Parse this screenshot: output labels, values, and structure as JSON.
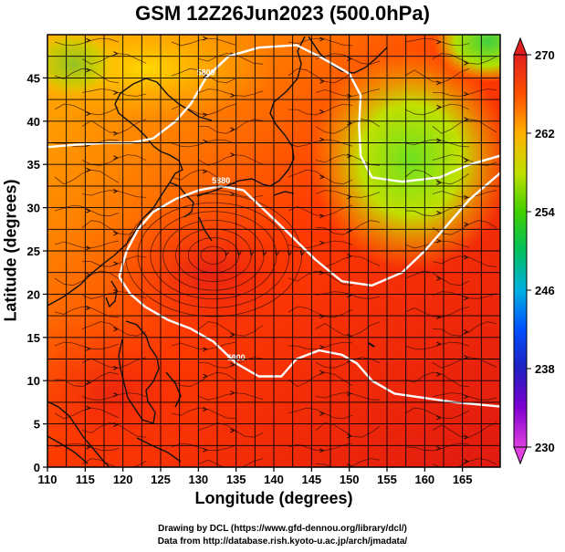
{
  "title": "GSM 12Z26Jun2023 (500.0hPa)",
  "xlabel": "Longitude (degrees)",
  "ylabel": "Latitude (degrees)",
  "credits": [
    "Drawing by DCL (https://www.gfd-dennou.org/library/dcl/)",
    "Data from http://database.rish.kyoto-u.ac.jp/arch/jmadata/"
  ],
  "chart_data": {
    "type": "heatmap",
    "xlim": [
      110,
      170
    ],
    "ylim": [
      0,
      50
    ],
    "xticks": [
      110,
      115,
      120,
      125,
      130,
      135,
      140,
      145,
      150,
      155,
      160,
      165
    ],
    "yticks": [
      0,
      5,
      10,
      15,
      20,
      25,
      30,
      35,
      40,
      45
    ],
    "grid": true,
    "colorbar": {
      "ticks": [
        230,
        238,
        246,
        254,
        262,
        270
      ],
      "range": [
        230,
        270
      ],
      "colors": [
        "#e040e0",
        "#4000c0",
        "#0060ff",
        "#00c8e0",
        "#00c040",
        "#80e000",
        "#f0e000",
        "#ff9900",
        "#ff4400",
        "#e02020"
      ]
    },
    "contours": [
      {
        "label": "5800",
        "points": [
          [
            110,
            37
          ],
          [
            114,
            37.3
          ],
          [
            118,
            37.5
          ],
          [
            121,
            37.5
          ],
          [
            124,
            38
          ],
          [
            127,
            40
          ],
          [
            129,
            42
          ],
          [
            131,
            45
          ],
          [
            134,
            47.5
          ],
          [
            138,
            48.5
          ],
          [
            143,
            48.8
          ],
          [
            146,
            47.5
          ],
          [
            150,
            45.5
          ],
          [
            151.5,
            43
          ],
          [
            151.3,
            39.5
          ],
          [
            151.5,
            36
          ],
          [
            153,
            33.5
          ],
          [
            157,
            33
          ],
          [
            162,
            33.5
          ],
          [
            166,
            35
          ],
          [
            170,
            36
          ]
        ]
      },
      {
        "label": "5880",
        "points": [
          [
            119.5,
            22
          ],
          [
            120.5,
            25
          ],
          [
            122,
            27.5
          ],
          [
            124,
            29.5
          ],
          [
            127,
            31
          ],
          [
            130,
            32
          ],
          [
            133,
            32.5
          ],
          [
            136,
            32
          ],
          [
            139,
            29.5
          ],
          [
            142,
            27
          ],
          [
            145.5,
            24
          ],
          [
            149,
            21.5
          ],
          [
            153,
            21
          ],
          [
            157,
            22.5
          ],
          [
            160,
            25
          ],
          [
            163,
            28
          ],
          [
            166,
            31
          ],
          [
            170,
            34
          ]
        ]
      },
      {
        "label": "5900",
        "points": [
          [
            119.5,
            22
          ],
          [
            121,
            20
          ],
          [
            123,
            18.5
          ],
          [
            126,
            17
          ],
          [
            129,
            16
          ],
          [
            132,
            14.5
          ],
          [
            135,
            12
          ],
          [
            138,
            10.5
          ],
          [
            141,
            10.5
          ],
          [
            143,
            12.5
          ],
          [
            146,
            13.5
          ],
          [
            149,
            13
          ],
          [
            151,
            12
          ],
          [
            153,
            10
          ],
          [
            156,
            8.5
          ],
          [
            160,
            8
          ],
          [
            164,
            7.5
          ],
          [
            170,
            7
          ]
        ]
      }
    ],
    "features": [
      {
        "label": "low-center",
        "x": 132,
        "y": 24.5
      }
    ]
  }
}
